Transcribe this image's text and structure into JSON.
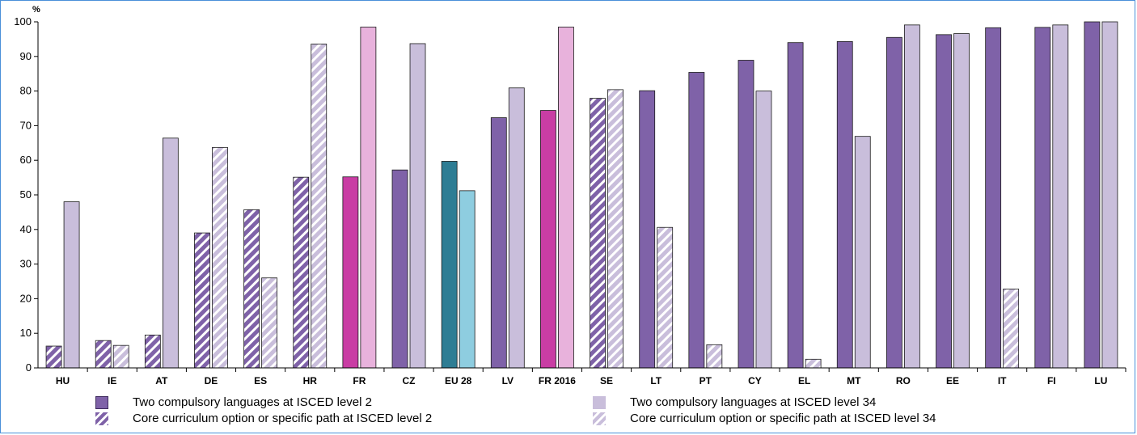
{
  "chart_data": {
    "type": "bar",
    "unit_label": "%",
    "ylim": [
      0,
      100
    ],
    "yticks": [
      0,
      10,
      20,
      30,
      40,
      50,
      60,
      70,
      80,
      90,
      100
    ],
    "grid": false,
    "legend_position": "bottom",
    "categories": [
      "HU",
      "IE",
      "AT",
      "DE",
      "ES",
      "HR",
      "FR",
      "CZ",
      "EU 28",
      "LV",
      "FR 2016",
      "SE",
      "LT",
      "PT",
      "CY",
      "EL",
      "MT",
      "RO",
      "EE",
      "IT",
      "FI",
      "LU"
    ],
    "series": [
      {
        "name": "ISCED level 2",
        "values": [
          6.3,
          7.9,
          9.5,
          39.0,
          45.7,
          55.1,
          55.2,
          57.2,
          59.7,
          72.3,
          74.4,
          77.9,
          80.1,
          85.4,
          88.9,
          94.0,
          94.3,
          95.5,
          96.3,
          98.3,
          98.4,
          100.0
        ],
        "kind": [
          "hatch",
          "hatch",
          "hatch",
          "hatch",
          "hatch",
          "hatch",
          "solid",
          "solid",
          "solid",
          "solid",
          "solid",
          "hatch",
          "solid",
          "solid",
          "solid",
          "solid",
          "solid",
          "solid",
          "solid",
          "solid",
          "solid",
          "solid"
        ]
      },
      {
        "name": "ISCED level 34",
        "values": [
          48.0,
          6.5,
          66.4,
          63.7,
          26.0,
          93.6,
          98.5,
          93.7,
          51.2,
          80.9,
          98.5,
          80.4,
          40.6,
          6.7,
          80.0,
          2.5,
          66.9,
          99.1,
          96.6,
          22.8,
          99.1,
          100.0
        ],
        "kind": [
          "solid",
          "hatch",
          "solid",
          "hatch",
          "hatch",
          "hatch",
          "solid",
          "solid",
          "solid",
          "solid",
          "solid",
          "hatch",
          "hatch",
          "hatch",
          "solid",
          "hatch",
          "solid",
          "solid",
          "solid",
          "hatch",
          "solid",
          "solid"
        ]
      }
    ],
    "special_colors": {
      "FR": [
        "#c93da4",
        "#e8b2dc"
      ],
      "FR 2016": [
        "#c93da4",
        "#e8b2dc"
      ],
      "EU 28": [
        "#2e7d94",
        "#8ecde0"
      ]
    },
    "default_colors": [
      "#7f62a8",
      "#c9bedb"
    ],
    "legend": [
      {
        "label": "Two compulsory languages at ISCED level 2",
        "style": "solid-dark"
      },
      {
        "label": "Core curriculum option or specific path at ISCED level 2",
        "style": "hatch-dark"
      },
      {
        "label": "Two compulsory languages at ISCED level 34",
        "style": "solid-light"
      },
      {
        "label": "Core curriculum option or specific path at ISCED level 34",
        "style": "hatch-light"
      }
    ]
  }
}
